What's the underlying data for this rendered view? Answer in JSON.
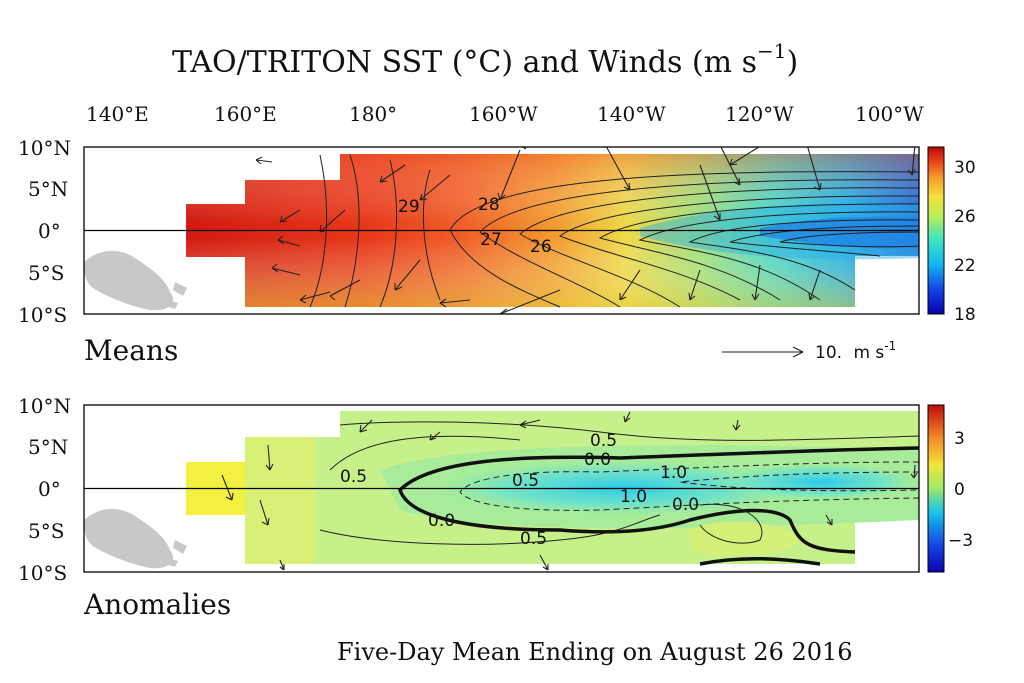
{
  "title": "TAO/TRITON SST (°C) and Winds (m s",
  "title_exp": "−1",
  "title_close": ")",
  "footer": "Five-Day Mean Ending on August 26 2016",
  "lon_labels": [
    "140°E",
    "160°E",
    "180°",
    "160°W",
    "140°W",
    "120°W",
    "100°W"
  ],
  "lat_labels": [
    "10°N",
    "5°N",
    "0°",
    "5°S",
    "10°S"
  ],
  "colors": {
    "land": "#c8c8c8",
    "frame": "#000000"
  },
  "chart_data": [
    {
      "type": "heatmap",
      "panel": "Means",
      "label": "Means",
      "variable": "SST (°C) with wind vectors (m s-1)",
      "lon_range": [
        "130°E",
        "95°W"
      ],
      "lat_range": [
        "10°S",
        "10°N"
      ],
      "colorbar": {
        "min": 18,
        "max": 32,
        "ticks": [
          "18",
          "22",
          "26",
          "30"
        ]
      },
      "contour_labels": [
        {
          "text": "29",
          "lon": "177°E",
          "lat": "4°N"
        },
        {
          "text": "28",
          "lon": "163°W",
          "lat": "3°N"
        },
        {
          "text": "27",
          "lon": "160°W",
          "lat": "-1°"
        },
        {
          "text": "26",
          "lon": "156°W",
          "lat": "-2°"
        }
      ],
      "wind_reference": {
        "value": "10.",
        "unit": "m s",
        "exp": "-1"
      },
      "sst_profile_equator": [
        {
          "lon": 150,
          "sst": 30.5
        },
        {
          "lon": 165,
          "sst": 30.0
        },
        {
          "lon": 180,
          "sst": 29.0
        },
        {
          "lon": 195,
          "sst": 28.0
        },
        {
          "lon": 205,
          "sst": 26.5
        },
        {
          "lon": 220,
          "sst": 25.5
        },
        {
          "lon": 235,
          "sst": 24.0
        },
        {
          "lon": 250,
          "sst": 22.0
        },
        {
          "lon": 265,
          "sst": 20.0
        }
      ]
    },
    {
      "type": "heatmap",
      "panel": "Anomalies",
      "label": "Anomalies",
      "variable": "SST anomaly (°C) with wind anomaly vectors",
      "lon_range": [
        "130°E",
        "95°W"
      ],
      "lat_range": [
        "10°S",
        "10°N"
      ],
      "colorbar": {
        "min": -5,
        "max": 5,
        "ticks": [
          "−3",
          "0",
          "3"
        ]
      },
      "contour_labels": [
        {
          "text": "0.5",
          "lon": "142°W",
          "lat": "7°N"
        },
        {
          "text": "0.0",
          "lon": "142°W",
          "lat": "4.5°N"
        },
        {
          "text": "1.0",
          "lon": "127°W",
          "lat": "3.5°N"
        },
        {
          "text": "0.5",
          "lon": "176°E",
          "lat": "2.5°N"
        },
        {
          "text": "0.5",
          "lon": "166°W",
          "lat": "1°N"
        },
        {
          "text": "1.0",
          "lon": "146°W",
          "lat": "-0.5°"
        },
        {
          "text": "0.0",
          "lon": "133°W",
          "lat": "-1.5°"
        },
        {
          "text": "0.0",
          "lon": "170°E",
          "lat": "-4.5°"
        },
        {
          "text": "0.5",
          "lon": "164°W",
          "lat": "-7°"
        }
      ]
    }
  ]
}
